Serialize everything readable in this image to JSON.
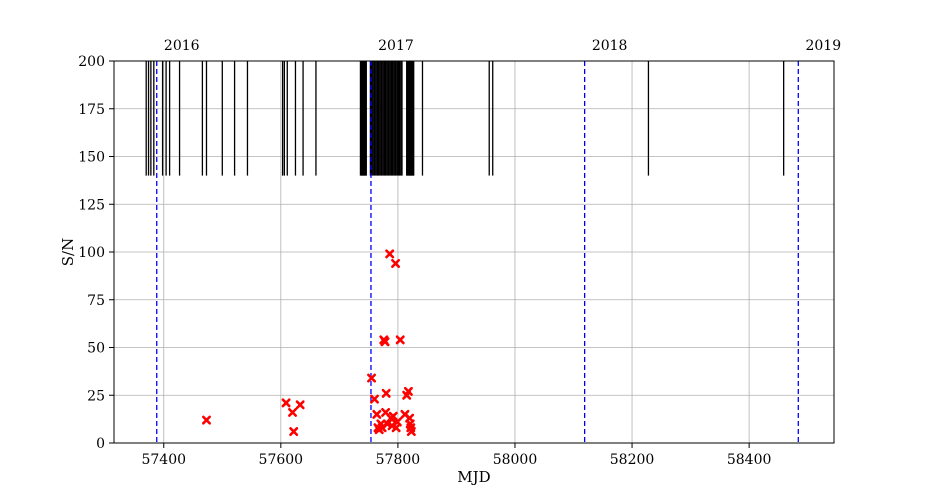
{
  "chart_data": {
    "type": "scatter",
    "xlabel": "MJD",
    "ylabel": "S/N",
    "xlim": [
      57315,
      58545
    ],
    "ylim": [
      0,
      200
    ],
    "xticks": [
      57400,
      57600,
      57800,
      58000,
      58200,
      58400
    ],
    "yticks": [
      0,
      25,
      50,
      75,
      100,
      125,
      150,
      175,
      200
    ],
    "grid": true,
    "year_markers": [
      {
        "label": "2016",
        "mjd": 57388
      },
      {
        "label": "2017",
        "mjd": 57754
      },
      {
        "label": "2018",
        "mjd": 58119
      },
      {
        "label": "2019",
        "mjd": 58484
      }
    ],
    "year_marker_color": "#0000ff",
    "observations": {
      "y_range": [
        140,
        200
      ],
      "color": "#000000",
      "mjd": [
        57370,
        57374,
        57378,
        57383,
        57398,
        57404,
        57410,
        57427,
        57466,
        57473,
        57500,
        57521,
        57543,
        57603,
        57606,
        57611,
        57625,
        57638,
        57660,
        57736,
        57737,
        57738,
        57739,
        57740,
        57741,
        57742,
        57743,
        57744,
        57745,
        57746,
        57753,
        57755,
        57757,
        57759,
        57761,
        57763,
        57765,
        57767,
        57769,
        57771,
        57773,
        57775,
        57777,
        57779,
        57781,
        57783,
        57785,
        57787,
        57789,
        57791,
        57793,
        57795,
        57797,
        57799,
        57801,
        57803,
        57805,
        57807,
        57815,
        57816,
        57817,
        57818,
        57819,
        57820,
        57821,
        57822,
        57823,
        57824,
        57825,
        57826,
        57827,
        57842,
        57956,
        57962,
        58228,
        58459
      ]
    },
    "series": [
      {
        "color": "#ff0000",
        "marker": "x",
        "points": [
          [
            57473,
            12
          ],
          [
            57609,
            21
          ],
          [
            57620,
            16
          ],
          [
            57622,
            6
          ],
          [
            57633,
            20
          ],
          [
            57755,
            34
          ],
          [
            57760,
            23
          ],
          [
            57764,
            15
          ],
          [
            57766,
            8
          ],
          [
            57768,
            7
          ],
          [
            57771,
            10
          ],
          [
            57773,
            8
          ],
          [
            57776,
            54
          ],
          [
            57778,
            53
          ],
          [
            57779,
            16
          ],
          [
            57780,
            26
          ],
          [
            57782,
            10
          ],
          [
            57786,
            99
          ],
          [
            57788,
            13
          ],
          [
            57790,
            9
          ],
          [
            57792,
            14
          ],
          [
            57796,
            94
          ],
          [
            57797,
            8
          ],
          [
            57799,
            11
          ],
          [
            57804,
            54
          ],
          [
            57812,
            15
          ],
          [
            57815,
            25
          ],
          [
            57818,
            27
          ],
          [
            57820,
            13
          ],
          [
            57821,
            10
          ],
          [
            57822,
            8
          ],
          [
            57823,
            6
          ]
        ]
      }
    ]
  }
}
